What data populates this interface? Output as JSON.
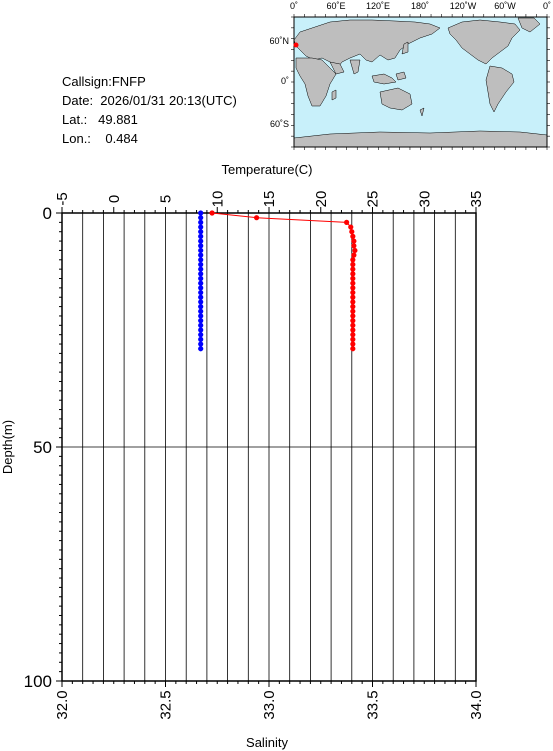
{
  "station": {
    "callsign": "Callsign:FNFP",
    "date": "Date:  2026/01/31 20:13(UTC)",
    "lat": "Lat.:   49.881",
    "lon": "Lon.:    0.484"
  },
  "map": {
    "lon_labels": [
      "0˚",
      "60˚E",
      "120˚E",
      "180˚",
      "120˚W",
      "60˚W",
      "0˚"
    ],
    "lat_labels": [
      "60˚N",
      "0˚",
      "60˚S"
    ],
    "ocean_color": "#c8f0fa",
    "land_color": "#bebebe",
    "marker_color": "#ff0000"
  },
  "chart_data": {
    "type": "line",
    "temperature_axis": {
      "label": "Temperature(C)",
      "ticks": [
        -5,
        0,
        5,
        10,
        15,
        20,
        25,
        30,
        35
      ],
      "range": [
        -5,
        35
      ]
    },
    "salinity_axis": {
      "label": "Salinity",
      "ticks": [
        "32.0",
        "32.5",
        "33.0",
        "33.5",
        "34.0"
      ],
      "range": [
        32.0,
        34.0
      ]
    },
    "depth_axis": {
      "label": "Depth(m)",
      "ticks": [
        0,
        50,
        100
      ],
      "range": [
        0,
        100
      ]
    },
    "series": [
      {
        "variable": "temperature",
        "color": "#ff0000",
        "points": [
          [
            9.5,
            0.0
          ],
          [
            13.8,
            1.0
          ],
          [
            22.5,
            2.0
          ],
          [
            22.9,
            3.0
          ],
          [
            23.0,
            4.0
          ],
          [
            23.1,
            5.0
          ],
          [
            23.2,
            6.0
          ],
          [
            23.2,
            7.0
          ],
          [
            23.3,
            8.0
          ],
          [
            23.2,
            9.0
          ],
          [
            23.1,
            10.0
          ],
          [
            23.1,
            11.0
          ],
          [
            23.1,
            12.0
          ],
          [
            23.1,
            13.0
          ],
          [
            23.1,
            14.0
          ],
          [
            23.1,
            15.0
          ],
          [
            23.1,
            16.0
          ],
          [
            23.1,
            17.0
          ],
          [
            23.1,
            18.0
          ],
          [
            23.1,
            19.0
          ],
          [
            23.1,
            20.0
          ],
          [
            23.1,
            21.0
          ],
          [
            23.1,
            22.0
          ],
          [
            23.1,
            23.0
          ],
          [
            23.1,
            24.0
          ],
          [
            23.1,
            25.0
          ],
          [
            23.1,
            26.0
          ],
          [
            23.1,
            27.0
          ],
          [
            23.1,
            28.0
          ],
          [
            23.1,
            29.0
          ]
        ]
      },
      {
        "variable": "salinity",
        "color": "#0000ff",
        "points": [
          [
            32.67,
            0.0
          ],
          [
            32.67,
            1.0
          ],
          [
            32.67,
            2.0
          ],
          [
            32.67,
            3.0
          ],
          [
            32.67,
            4.0
          ],
          [
            32.67,
            5.0
          ],
          [
            32.67,
            6.0
          ],
          [
            32.67,
            7.0
          ],
          [
            32.67,
            8.0
          ],
          [
            32.67,
            9.0
          ],
          [
            32.67,
            10.0
          ],
          [
            32.67,
            11.0
          ],
          [
            32.67,
            12.0
          ],
          [
            32.67,
            13.0
          ],
          [
            32.67,
            14.0
          ],
          [
            32.67,
            15.0
          ],
          [
            32.67,
            16.0
          ],
          [
            32.67,
            17.0
          ],
          [
            32.67,
            18.0
          ],
          [
            32.67,
            19.0
          ],
          [
            32.67,
            20.0
          ],
          [
            32.67,
            21.0
          ],
          [
            32.67,
            22.0
          ],
          [
            32.67,
            23.0
          ],
          [
            32.67,
            24.0
          ],
          [
            32.67,
            25.0
          ],
          [
            32.67,
            26.0
          ],
          [
            32.67,
            27.0
          ],
          [
            32.67,
            28.0
          ],
          [
            32.67,
            29.0
          ]
        ]
      }
    ],
    "grid": true
  }
}
